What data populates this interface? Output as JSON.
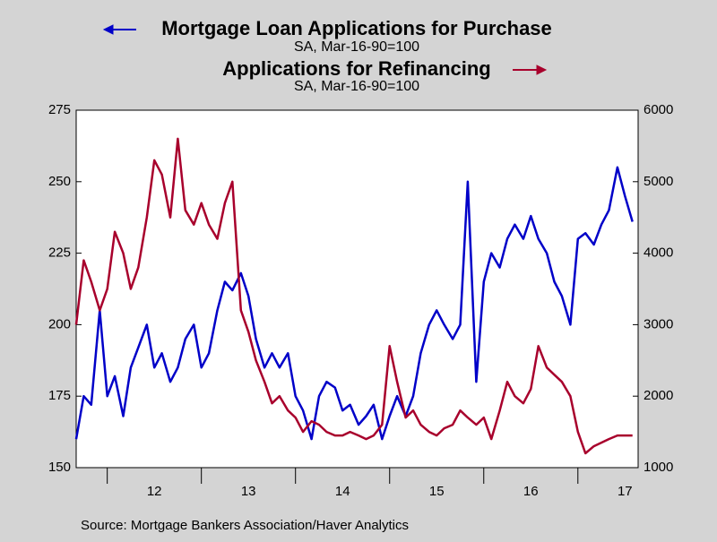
{
  "chart_data": {
    "type": "line",
    "series": [
      {
        "name": "Mortgage Loan Applications for Purchase",
        "subtitle": "SA, Mar-16-90=100",
        "color": "#0000c8",
        "axis": "y",
        "values": [
          160,
          175,
          172,
          205,
          175,
          182,
          168,
          185,
          192,
          200,
          185,
          190,
          180,
          185,
          195,
          200,
          185,
          190,
          205,
          215,
          212,
          218,
          210,
          195,
          185,
          190,
          185,
          190,
          175,
          170,
          160,
          175,
          180,
          178,
          170,
          172,
          165,
          168,
          172,
          160,
          168,
          175,
          168,
          175,
          190,
          200,
          205,
          200,
          195,
          200,
          250,
          180,
          215,
          225,
          220,
          230,
          235,
          230,
          238,
          230,
          225,
          215,
          210,
          200,
          230,
          232,
          228,
          235,
          240,
          255,
          245,
          236
        ]
      },
      {
        "name": "Applications for Refinancing",
        "subtitle": "SA, Mar-16-90=100",
        "color": "#a8002c",
        "axis": "y2",
        "values": [
          3000,
          3900,
          3600,
          3200,
          3500,
          4300,
          4000,
          3500,
          3800,
          4500,
          5300,
          5100,
          4500,
          5600,
          4600,
          4400,
          4700,
          4400,
          4200,
          4700,
          5000,
          3200,
          2900,
          2500,
          2200,
          1900,
          2000,
          1800,
          1700,
          1500,
          1650,
          1600,
          1500,
          1450,
          1450,
          1500,
          1450,
          1400,
          1450,
          1600,
          2700,
          2200,
          1700,
          1800,
          1600,
          1500,
          1450,
          1550,
          1600,
          1800,
          1700,
          1600,
          1700,
          1400,
          1800,
          2200,
          2000,
          1900,
          2100,
          2700,
          2400,
          2300,
          2200,
          2000,
          1500,
          1200,
          1300,
          1350,
          1400,
          1450,
          1450,
          1450
        ]
      }
    ],
    "x": [
      11.67,
      11.75,
      11.83,
      11.92,
      12.0,
      12.08,
      12.17,
      12.25,
      12.33,
      12.42,
      12.5,
      12.58,
      12.67,
      12.75,
      12.83,
      12.92,
      13.0,
      13.08,
      13.17,
      13.25,
      13.33,
      13.42,
      13.5,
      13.58,
      13.67,
      13.75,
      13.83,
      13.92,
      14.0,
      14.08,
      14.17,
      14.25,
      14.33,
      14.42,
      14.5,
      14.58,
      14.67,
      14.75,
      14.83,
      14.92,
      15.0,
      15.08,
      15.17,
      15.25,
      15.33,
      15.42,
      15.5,
      15.58,
      15.67,
      15.75,
      15.83,
      15.92,
      16.0,
      16.08,
      16.17,
      16.25,
      16.33,
      16.42,
      16.5,
      16.58,
      16.67,
      16.75,
      16.83,
      16.92,
      17.0,
      17.08,
      17.17,
      17.25,
      17.33,
      17.42,
      17.5,
      17.58
    ],
    "xlim": [
      11.67,
      17.64
    ],
    "xticks": [
      {
        "value": 12.5,
        "label": "12"
      },
      {
        "value": 13.5,
        "label": "13"
      },
      {
        "value": 14.5,
        "label": "14"
      },
      {
        "value": 15.5,
        "label": "15"
      },
      {
        "value": 16.5,
        "label": "16"
      },
      {
        "value": 17.5,
        "label": "17"
      }
    ],
    "xminor": [
      12,
      13,
      14,
      15,
      16,
      17
    ],
    "ylim": [
      150,
      275
    ],
    "yticks": [
      150,
      175,
      200,
      225,
      250,
      275
    ],
    "y2lim": [
      1000,
      6000
    ],
    "y2ticks": [
      1000,
      2000,
      3000,
      4000,
      5000,
      6000
    ],
    "source": "Source:  Mortgage Bankers Association/Haver Analytics"
  }
}
